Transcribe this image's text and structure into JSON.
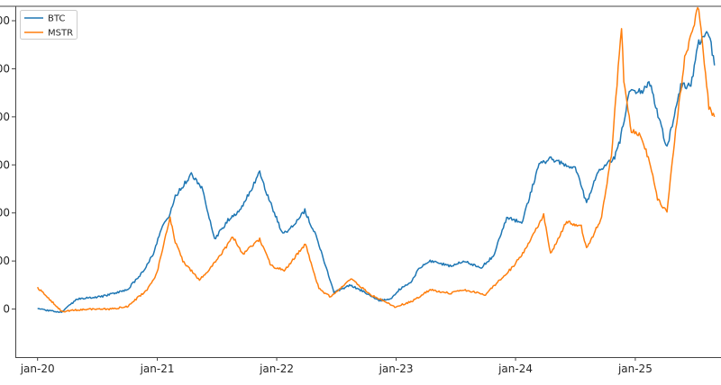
{
  "chart_data": {
    "type": "line",
    "title": "",
    "xlabel": "",
    "ylabel": "",
    "x_ticks": [
      "jan-20",
      "jan-21",
      "jan-22",
      "jan-23",
      "jan-24",
      "jan-25"
    ],
    "y_ticks": [
      "0",
      "00",
      "00",
      "00",
      "00",
      "00",
      "00"
    ],
    "y_tick_values": [
      100,
      200,
      300,
      400,
      500,
      600,
      700
    ],
    "ylim": [
      0,
      730
    ],
    "xlim": [
      "2019-10-25",
      "2025-09-20"
    ],
    "legend_position": "top-left",
    "grid": false,
    "series": [
      {
        "name": "BTC",
        "color": "#1f77b4",
        "x": [
          "2020-01-01",
          "2020-03-15",
          "2020-05-01",
          "2020-07-15",
          "2020-10-01",
          "2020-11-15",
          "2020-12-20",
          "2021-01-10",
          "2021-02-10",
          "2021-02-25",
          "2021-04-15",
          "2021-05-20",
          "2021-06-25",
          "2021-08-05",
          "2021-09-10",
          "2021-10-20",
          "2021-11-10",
          "2021-12-05",
          "2022-01-20",
          "2022-02-15",
          "2022-03-28",
          "2022-05-01",
          "2022-05-20",
          "2022-06-25",
          "2022-08-15",
          "2022-09-30",
          "2022-11-10",
          "2022-12-15",
          "2023-01-10",
          "2023-02-15",
          "2023-03-15",
          "2023-04-15",
          "2023-06-15",
          "2023-08-01",
          "2023-09-15",
          "2023-10-25",
          "2023-12-05",
          "2024-01-20",
          "2024-03-13",
          "2024-04-15",
          "2024-06-05",
          "2024-07-05",
          "2024-08-05",
          "2024-09-10",
          "2024-10-30",
          "2024-11-15",
          "2024-12-17",
          "2025-01-20",
          "2025-02-15",
          "2025-03-01",
          "2025-04-08",
          "2025-05-20",
          "2025-06-20",
          "2025-07-14",
          "2025-08-14",
          "2025-08-31"
        ],
        "values": [
          100,
          93,
          121,
          126,
          140,
          175,
          215,
          262,
          300,
          335,
          380,
          348,
          245,
          285,
          305,
          355,
          385,
          335,
          255,
          270,
          305,
          252,
          212,
          135,
          150,
          134,
          118,
          120,
          140,
          157,
          187,
          200,
          190,
          200,
          185,
          210,
          290,
          280,
          400,
          413,
          400,
          390,
          320,
          388,
          415,
          450,
          560,
          550,
          570,
          530,
          435,
          565,
          565,
          655,
          675,
          607
        ]
      },
      {
        "name": "MSTR",
        "color": "#ff7f0e",
        "x": [
          "2020-01-01",
          "2020-03-15",
          "2020-06-01",
          "2020-08-10",
          "2020-10-01",
          "2020-12-01",
          "2020-12-31",
          "2021-02-09",
          "2021-02-25",
          "2021-03-20",
          "2021-05-10",
          "2021-07-01",
          "2021-08-20",
          "2021-09-20",
          "2021-11-10",
          "2021-12-15",
          "2022-01-24",
          "2022-03-30",
          "2022-05-10",
          "2022-06-15",
          "2022-08-15",
          "2022-10-15",
          "2022-12-28",
          "2023-02-15",
          "2023-04-15",
          "2023-06-15",
          "2023-07-25",
          "2023-10-01",
          "2023-12-20",
          "2024-01-23",
          "2024-03-27",
          "2024-04-17",
          "2024-06-05",
          "2024-07-20",
          "2024-08-05",
          "2024-09-20",
          "2024-10-20",
          "2024-11-20",
          "2024-11-27",
          "2024-12-20",
          "2025-01-20",
          "2025-02-20",
          "2025-03-10",
          "2025-04-08",
          "2025-05-01",
          "2025-06-01",
          "2025-07-14",
          "2025-08-14",
          "2025-08-31"
        ],
        "values": [
          145,
          95,
          100,
          100,
          105,
          140,
          175,
          290,
          240,
          200,
          160,
          200,
          250,
          215,
          245,
          190,
          180,
          235,
          142,
          125,
          163,
          130,
          105,
          115,
          140,
          133,
          140,
          130,
          185,
          215,
          295,
          215,
          282,
          271,
          225,
          290,
          420,
          690,
          570,
          470,
          460,
          390,
          330,
          300,
          450,
          620,
          730,
          520,
          500
        ]
      }
    ]
  }
}
